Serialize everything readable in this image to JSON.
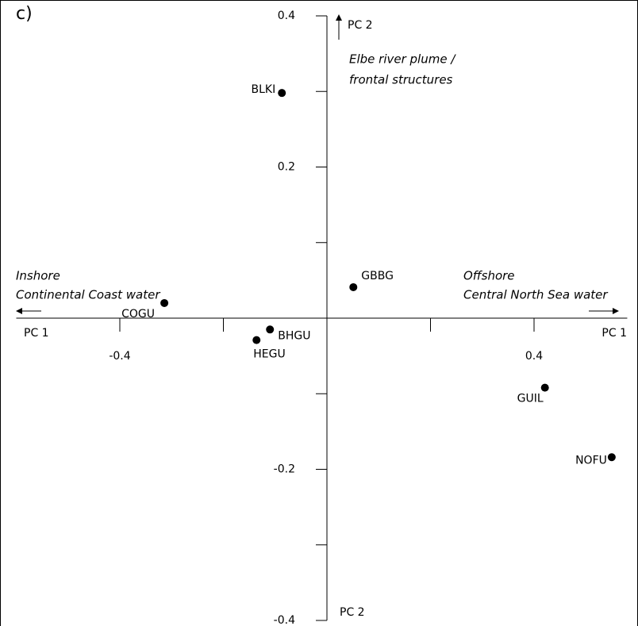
{
  "chart_data": {
    "type": "scatter",
    "panel_label": "c)",
    "labels": [
      "BLKI",
      "GBBG",
      "COGU",
      "BHGU",
      "HEGU",
      "GUIL",
      "NOFU"
    ],
    "x": [
      -0.087,
      0.051,
      -0.314,
      -0.11,
      -0.136,
      0.421,
      0.55
    ],
    "y": [
      0.298,
      0.041,
      0.02,
      -0.015,
      -0.029,
      -0.092,
      -0.184
    ],
    "color": "#000000",
    "xlim": [
      -0.6,
      0.58
    ],
    "ylim": [
      -0.4,
      0.4
    ],
    "xticks": [
      -0.4,
      0.4
    ],
    "xminor_ticks": [
      -0.2,
      0.2
    ],
    "yticks": [
      0.4,
      0.2,
      -0.2,
      -0.4
    ],
    "yminor_ticks": [
      0.3,
      0.1,
      -0.1,
      -0.3
    ],
    "x_axis_label_left": "PC 1",
    "x_axis_label_right": "PC 1",
    "y_axis_label_top": "PC 2",
    "y_axis_label_bottom": "PC 2",
    "annotations": {
      "top": [
        "Elbe river plume /",
        "frontal structures"
      ],
      "left": [
        "Inshore",
        "Continental Coast water"
      ],
      "right": [
        "Offshore",
        "Central North Sea water"
      ]
    }
  }
}
